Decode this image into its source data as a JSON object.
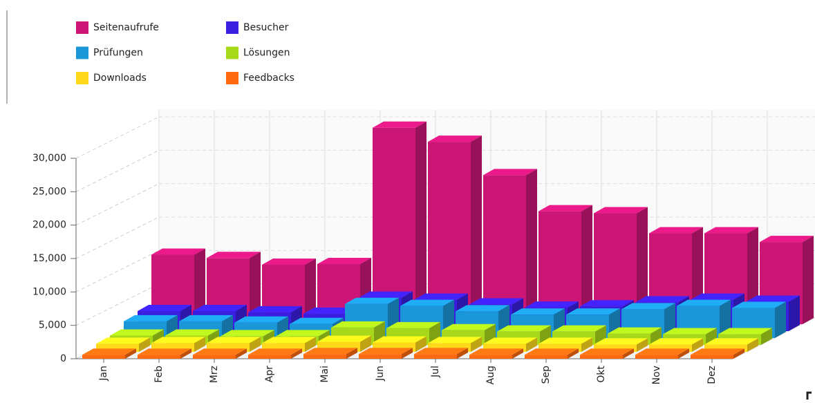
{
  "chart_data": {
    "type": "bar3d",
    "categories": [
      "Jan",
      "Feb",
      "Mrz",
      "Apr",
      "Mai",
      "Jun",
      "Jul",
      "Aug",
      "Sep",
      "Okt",
      "Nov",
      "Dez"
    ],
    "series": [
      {
        "name": "Seitenaufrufe",
        "color": "#cc1677",
        "values": [
          10400,
          9900,
          8900,
          9000,
          29400,
          27300,
          22300,
          16900,
          16600,
          13600,
          13600,
          12300
        ]
      },
      {
        "name": "Besucher",
        "color": "#3a1ee0",
        "values": [
          3000,
          3000,
          2800,
          2600,
          5000,
          4700,
          4000,
          3500,
          3700,
          4300,
          4700,
          4400
        ]
      },
      {
        "name": "Prüfungen",
        "color": "#1b96d6",
        "values": [
          2500,
          2500,
          2300,
          2100,
          5100,
          4800,
          4000,
          3500,
          3500,
          4300,
          4800,
          4500
        ]
      },
      {
        "name": "Lösungen",
        "color": "#a8d81a",
        "values": [
          1400,
          1400,
          1300,
          1300,
          2600,
          2500,
          2200,
          2000,
          2000,
          1700,
          1600,
          1600
        ]
      },
      {
        "name": "Downloads",
        "color": "#ffd91a",
        "values": [
          1200,
          1300,
          1300,
          1300,
          1500,
          1400,
          1300,
          1200,
          1200,
          1100,
          1100,
          1100
        ]
      },
      {
        "name": "Feedbacks",
        "color": "#ff6a10",
        "values": [
          600,
          600,
          600,
          600,
          700,
          700,
          700,
          600,
          600,
          600,
          600,
          600
        ]
      }
    ],
    "ylim": [
      0,
      30000
    ],
    "yticks": [
      0,
      {
        "value": 5000,
        "label": "5,000"
      },
      {
        "value": 10000,
        "label": "10,000"
      },
      {
        "value": 15000,
        "label": "15,000"
      },
      {
        "value": 20000,
        "label": "20,000"
      },
      {
        "value": 25000,
        "label": "25,000"
      },
      {
        "value": 30000,
        "label": "30,000"
      }
    ],
    "grid": true
  }
}
